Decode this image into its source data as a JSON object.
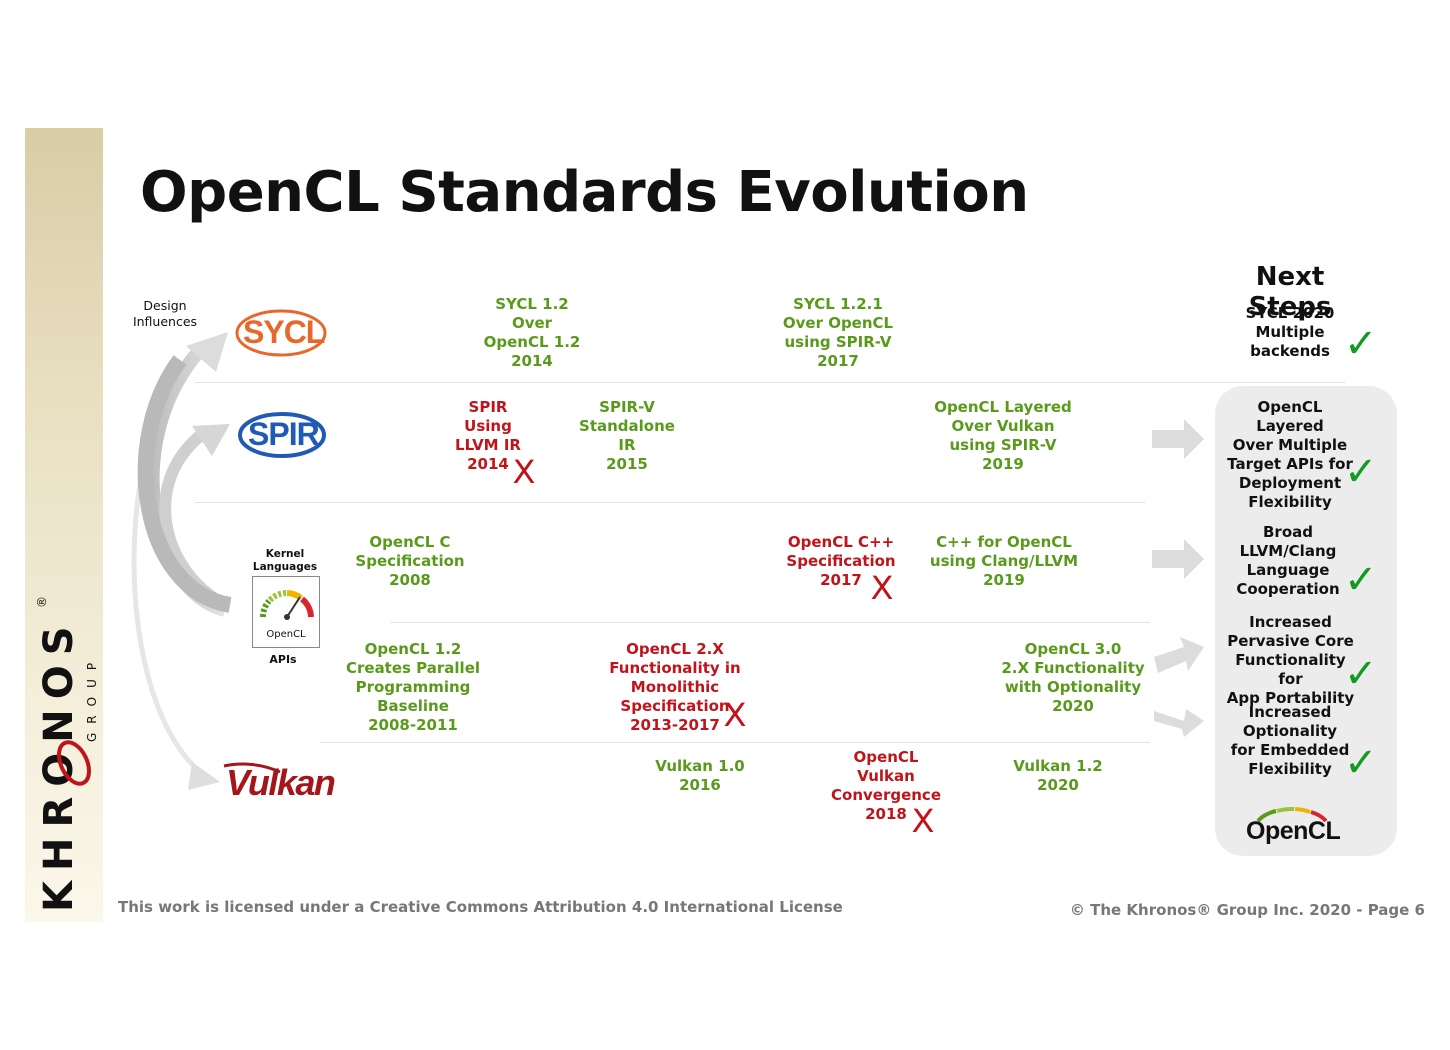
{
  "title": "OpenCL Standards Evolution",
  "sidebar": {
    "brand": "KHRONOS",
    "sub": "GROUP",
    "mark": "®"
  },
  "left_labels": {
    "design_influences": "Design\nInfluences",
    "kernel_languages": "Kernel\nLanguages",
    "apis": "APIs",
    "opencl_badge": "OpenCL"
  },
  "logos": {
    "sycl": "SYCL",
    "spir": "SPIR",
    "vulkan": "Vulkan",
    "opencl": "OpenCL"
  },
  "timeline": {
    "sycl_12": "SYCL 1.2\nOver\nOpenCL 1.2\n2014",
    "sycl_121": "SYCL 1.2.1\nOver OpenCL\nusing SPIR-V\n2017",
    "spir_llvm": "SPIR\nUsing\nLLVM IR\n2014",
    "spirv_standalone": "SPIR-V\nStandalone\nIR\n2015",
    "opencl_layered": "OpenCL Layered\nOver Vulkan\nusing SPIR-V\n2019",
    "opencl_c": "OpenCL C\nSpecification\n2008",
    "opencl_cpp": "OpenCL C++\nSpecification\n2017",
    "cpp_for_opencl": "C++ for OpenCL\nusing Clang/LLVM\n2019",
    "opencl_12": "OpenCL 1.2\nCreates Parallel\nProgramming Baseline\n2008-2011",
    "opencl_2x": "OpenCL 2.X\nFunctionality in\nMonolithic Specification\n2013-2017",
    "opencl_30": "OpenCL 3.0\n2.X Functionality\nwith Optionality\n2020",
    "vulkan_10": "Vulkan 1.0\n2016",
    "opencl_vulkan_conv": "OpenCL\nVulkan\nConvergence\n2018",
    "vulkan_12": "Vulkan 1.2\n2020"
  },
  "next_steps": {
    "title": "Next Steps",
    "items": [
      "SYCL 2020\nMultiple\nbackends",
      "OpenCL Layered\nOver Multiple\nTarget APIs for\nDeployment\nFlexibility",
      "Broad\nLLVM/Clang\nLanguage\nCooperation",
      "Increased\nPervasive Core\nFunctionality for\nApp Portability",
      "Increased\nOptionality\nfor Embedded\nFlexibility"
    ]
  },
  "symbols": {
    "check": "✓",
    "x": "X"
  },
  "footer": {
    "license": "This work is licensed under a Creative Commons Attribution 4.0 International License",
    "copyright": "© The Khronos® Group Inc. 2020 - Page 6"
  },
  "colors": {
    "green": "#5a9a1b",
    "red": "#c0141b",
    "check": "#129b1f",
    "sycl": "#e8672a",
    "spir": "#1f5bb5",
    "vulkan": "#a4161a"
  }
}
